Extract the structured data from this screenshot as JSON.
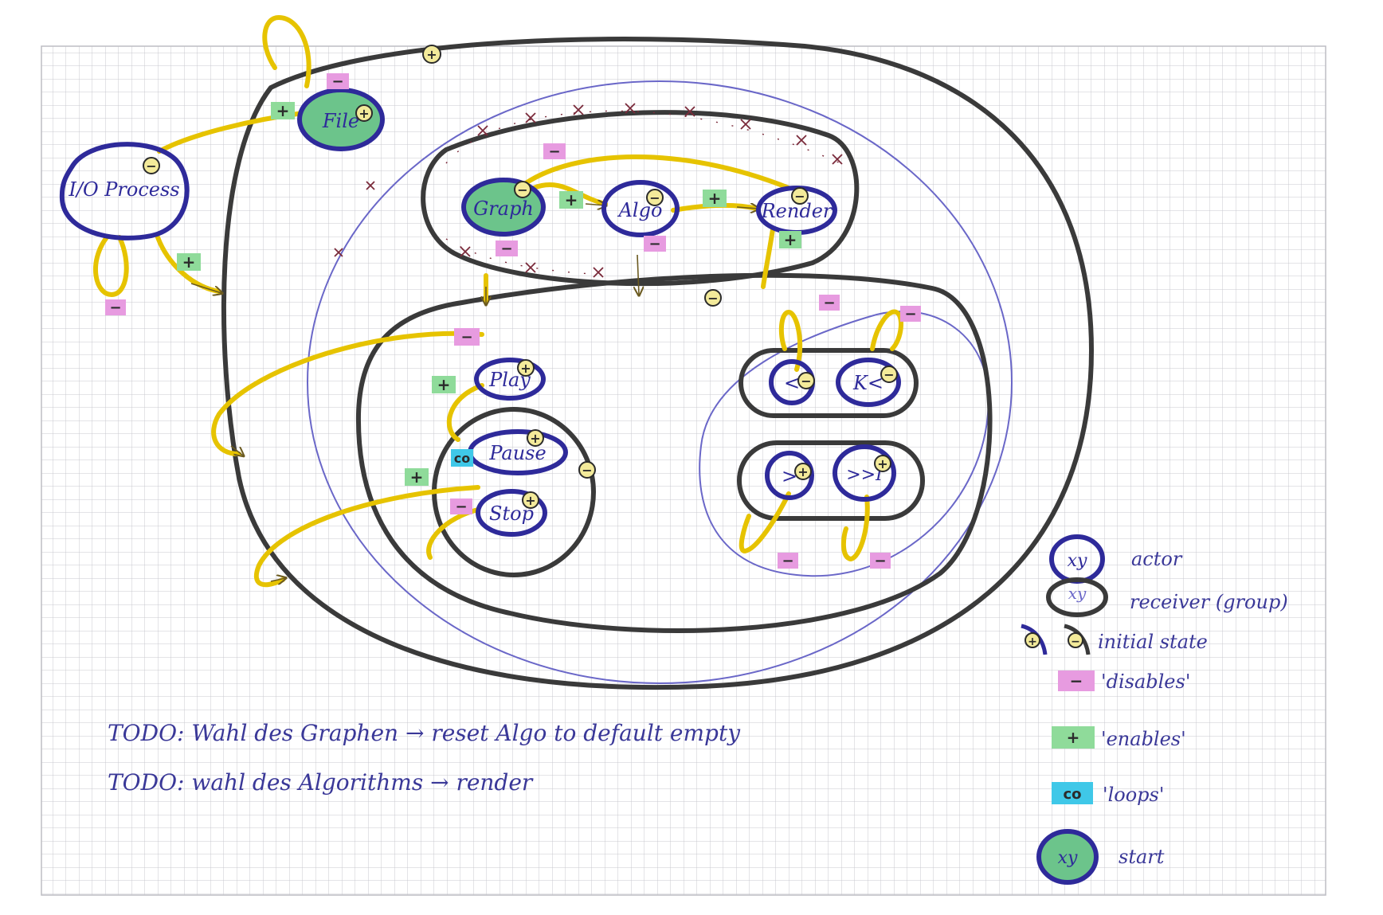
{
  "actors": {
    "file": "File",
    "io": "I/O Process",
    "graph": "Graph",
    "algo": "Algo",
    "render": "Render",
    "play": "Play",
    "pause": "Pause",
    "stop": "Stop",
    "step_back": "<",
    "rewind": "K<",
    "step_fwd": ">",
    "fast_fwd": ">>I"
  },
  "markers": {
    "plus": "+",
    "minus": "−",
    "loop": "co"
  },
  "legend": {
    "actor_sample": "xy",
    "actor": "actor",
    "receiver": "receiver (group)",
    "initial_state": "initial state",
    "disables": "'disables'",
    "enables": "'enables'",
    "loops": "'loops'",
    "start": "start"
  },
  "notes": [
    "TODO: Wahl des Graphen → reset Algo to default empty",
    "TODO: wahl des Algorithms → render"
  ],
  "colors": {
    "paper": "#ffffff",
    "grid": "#c9c9cf",
    "receiver": "#3a3a3a",
    "actor": "#2e2a9a",
    "thin_outline": "#6a67c8",
    "enable_arrow": "#e6c300",
    "disable_x": "#7a2a3a",
    "disable_marker": "#e79be0",
    "enable_marker": "#8fdb9a",
    "loop_marker": "#3fc8e8",
    "start_fill": "#6cc48b",
    "initial_badge": "#f3ea9a",
    "ink": "#3a3898"
  }
}
